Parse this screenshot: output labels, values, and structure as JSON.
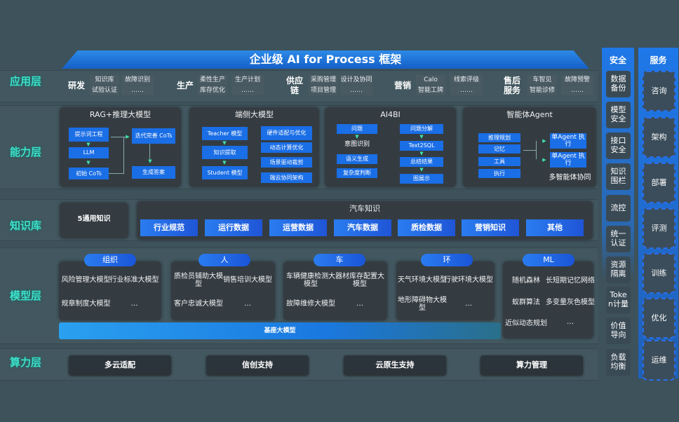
{
  "title": "企业级 AI for Process 框架",
  "layers": {
    "app": "应用层",
    "capability": "能力层",
    "knowledge": "知识库",
    "model": "模型层",
    "compute": "算力层"
  },
  "app": {
    "groups": [
      {
        "name": "研发",
        "items": [
          "知识库",
          "试验认证",
          "故障识别",
          "……"
        ]
      },
      {
        "name": "生产",
        "items": [
          "柔性生产",
          "库存优化",
          "生产计划",
          "……"
        ]
      },
      {
        "name": "供应链",
        "items": [
          "采购管理",
          "项目管理",
          "设计及协同",
          "……"
        ]
      },
      {
        "name": "营销",
        "items": [
          "Calo",
          "智能工牌",
          "线索评级",
          "……"
        ]
      },
      {
        "name": "售后服务",
        "items": [
          "车智见",
          "智能诊修",
          "故障预警",
          "……"
        ]
      }
    ]
  },
  "capability": {
    "panels": [
      {
        "title": "RAG+推理大模型",
        "items": [
          "提示词工程",
          "LLM",
          "初始 CoTs",
          "迭代完善 CoTs",
          "生成答案"
        ]
      },
      {
        "title": "端侧大模型",
        "items": [
          "Teacher 模型",
          "知识提取",
          "Student 模型",
          "硬件适配与优化",
          "动态计算优化",
          "场景驱动裁剪",
          "端云协同架构"
        ]
      },
      {
        "title": "AI4BI",
        "items": [
          "问题",
          "意图识别",
          "语义生成",
          "复杂度判断",
          "问题分解",
          "Text2SQL",
          "总结结果",
          "图展示"
        ]
      },
      {
        "title": "智能体Agent",
        "items": [
          "推理规划",
          "记忆",
          "工具",
          "执行",
          "单Agent 执行",
          "单Agent 执行",
          "多智能体协同"
        ]
      }
    ]
  },
  "knowledge": {
    "general": "5通用知识",
    "auto_title": "汽车知识",
    "items": [
      "行业规范",
      "运行数据",
      "运营数据",
      "汽车数据",
      "质检数据",
      "营销知识",
      "其他"
    ]
  },
  "model": {
    "groups": [
      {
        "name": "组织",
        "items": [
          "风险管理大模型",
          "行业标准大模型",
          "规章制度大模型",
          "…"
        ]
      },
      {
        "name": "人",
        "items": [
          "质检员辅助大模型",
          "销售培训大模型",
          "客户忠诚大模型",
          "…"
        ]
      },
      {
        "name": "车",
        "items": [
          "车辆健康检测大模型",
          "器材库存配置大模型",
          "故障维修大模型",
          "…"
        ]
      },
      {
        "name": "环",
        "items": [
          "天气环境大模型",
          "行驶环境大模型",
          "地形障碍物大模型",
          "…"
        ]
      },
      {
        "name": "ML",
        "items": [
          "随机森林",
          "长短期记忆网络",
          "蚁群算法",
          "多变量灰色模型",
          "近似动态规划",
          "…"
        ]
      }
    ],
    "base": "基座大模型"
  },
  "compute": {
    "items": [
      "多云适配",
      "信创支持",
      "云原生支持",
      "算力管理"
    ]
  },
  "security": {
    "title": "安全",
    "items": [
      "数据备份",
      "模型安全",
      "接口安全",
      "知识围栏",
      "流控",
      "统一认证",
      "资源隔离",
      "Token计量",
      "价值导向",
      "负载均衡"
    ]
  },
  "service": {
    "title": "服务",
    "items": [
      "咨询",
      "架构",
      "部署",
      "评测",
      "训练",
      "优化",
      "运维"
    ]
  },
  "colors": {
    "background": "#3d525b",
    "accent_blue": "#1a6ee6",
    "layer_label": "#3fe0c8",
    "panel": "#343c42"
  }
}
